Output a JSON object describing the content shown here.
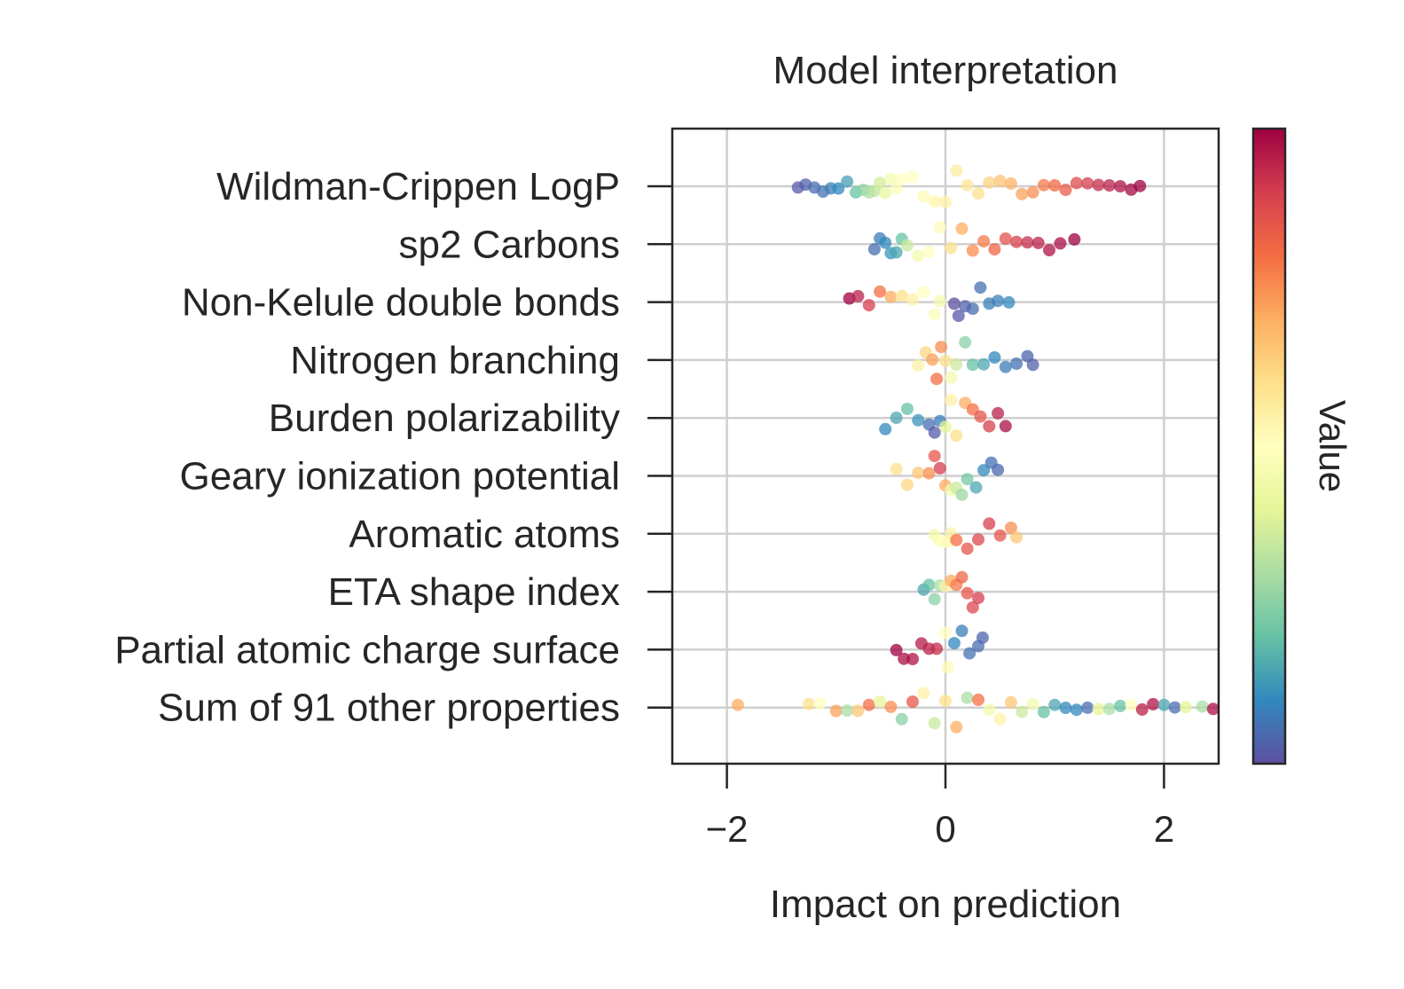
{
  "chart_data": {
    "type": "scatter",
    "subtype": "beeswarm",
    "title": "Model interpretation",
    "xlabel": "Impact on prediction",
    "ylabel": "",
    "xlim": [
      -2.5,
      2.5
    ],
    "xticks": [
      -2,
      0,
      2
    ],
    "xtick_labels": [
      "−2",
      "0",
      "2"
    ],
    "grid": true,
    "colorbar": {
      "label": "Value",
      "colormap": "Spectral",
      "range": [
        0,
        1
      ],
      "stops": [
        "#5e4fa2",
        "#3288bd",
        "#66c2a5",
        "#abdda4",
        "#e6f598",
        "#ffffbf",
        "#fee08b",
        "#fdae61",
        "#f46d43",
        "#d53e4f",
        "#9e0142"
      ]
    },
    "features": [
      {
        "name": "Wildman-Crippen LogP",
        "points": [
          [
            -1.35,
            0.02
          ],
          [
            -1.28,
            0.03
          ],
          [
            -1.2,
            0.05
          ],
          [
            -1.12,
            0.06
          ],
          [
            -1.05,
            0.08
          ],
          [
            -0.98,
            0.1
          ],
          [
            -0.9,
            0.14
          ],
          [
            -0.82,
            0.2
          ],
          [
            -0.75,
            0.26
          ],
          [
            -0.7,
            0.3
          ],
          [
            -0.65,
            0.33
          ],
          [
            -0.6,
            0.37
          ],
          [
            -0.55,
            0.42
          ],
          [
            -0.5,
            0.46
          ],
          [
            -0.45,
            0.48
          ],
          [
            -0.4,
            0.5
          ],
          [
            -0.3,
            0.5
          ],
          [
            -0.2,
            0.52
          ],
          [
            -0.1,
            0.53
          ],
          [
            0.0,
            0.55
          ],
          [
            0.1,
            0.56
          ],
          [
            0.2,
            0.58
          ],
          [
            0.3,
            0.6
          ],
          [
            0.4,
            0.63
          ],
          [
            0.5,
            0.66
          ],
          [
            0.6,
            0.69
          ],
          [
            0.7,
            0.72
          ],
          [
            0.8,
            0.75
          ],
          [
            0.9,
            0.78
          ],
          [
            1.0,
            0.81
          ],
          [
            1.1,
            0.84
          ],
          [
            1.2,
            0.87
          ],
          [
            1.3,
            0.9
          ],
          [
            1.4,
            0.93
          ],
          [
            1.5,
            0.95
          ],
          [
            1.6,
            0.97
          ],
          [
            1.7,
            0.99
          ],
          [
            1.78,
            1.0
          ]
        ]
      },
      {
        "name": "sp2 Carbons",
        "points": [
          [
            -0.65,
            0.05
          ],
          [
            -0.6,
            0.08
          ],
          [
            -0.55,
            0.1
          ],
          [
            -0.5,
            0.12
          ],
          [
            -0.45,
            0.15
          ],
          [
            -0.4,
            0.2
          ],
          [
            -0.35,
            0.35
          ],
          [
            -0.25,
            0.45
          ],
          [
            -0.15,
            0.5
          ],
          [
            -0.05,
            0.52
          ],
          [
            0.05,
            0.6
          ],
          [
            0.15,
            0.7
          ],
          [
            0.25,
            0.75
          ],
          [
            0.35,
            0.78
          ],
          [
            0.45,
            0.82
          ],
          [
            0.55,
            0.86
          ],
          [
            0.65,
            0.9
          ],
          [
            0.75,
            0.93
          ],
          [
            0.85,
            0.95
          ],
          [
            0.95,
            0.97
          ],
          [
            1.05,
            0.98
          ],
          [
            1.18,
            1.0
          ]
        ]
      },
      {
        "name": "Non-Kelule double bonds",
        "points": [
          [
            -0.88,
            1.0
          ],
          [
            -0.8,
            0.95
          ],
          [
            -0.7,
            0.9
          ],
          [
            -0.6,
            0.8
          ],
          [
            -0.5,
            0.7
          ],
          [
            -0.4,
            0.6
          ],
          [
            -0.3,
            0.55
          ],
          [
            -0.2,
            0.5
          ],
          [
            -0.1,
            0.48
          ],
          [
            -0.05,
            0.45
          ],
          [
            0.08,
            0.0
          ],
          [
            0.12,
            0.02
          ],
          [
            0.18,
            0.03
          ],
          [
            0.25,
            0.05
          ],
          [
            0.32,
            0.06
          ],
          [
            0.4,
            0.08
          ],
          [
            0.48,
            0.08
          ],
          [
            0.58,
            0.1
          ]
        ]
      },
      {
        "name": "Nitrogen branching",
        "points": [
          [
            -0.25,
            0.55
          ],
          [
            -0.18,
            0.62
          ],
          [
            -0.12,
            0.72
          ],
          [
            -0.08,
            0.8
          ],
          [
            -0.04,
            0.75
          ],
          [
            0.0,
            0.6
          ],
          [
            0.05,
            0.45
          ],
          [
            0.1,
            0.35
          ],
          [
            0.18,
            0.25
          ],
          [
            0.25,
            0.2
          ],
          [
            0.35,
            0.15
          ],
          [
            0.45,
            0.1
          ],
          [
            0.55,
            0.08
          ],
          [
            0.65,
            0.06
          ],
          [
            0.75,
            0.04
          ],
          [
            0.8,
            0.03
          ]
        ]
      },
      {
        "name": "Burden polarizability",
        "points": [
          [
            -0.55,
            0.1
          ],
          [
            -0.45,
            0.15
          ],
          [
            -0.35,
            0.2
          ],
          [
            -0.25,
            0.12
          ],
          [
            -0.15,
            0.05
          ],
          [
            -0.1,
            0.02
          ],
          [
            -0.05,
            0.08
          ],
          [
            0.0,
            0.4
          ],
          [
            0.05,
            0.55
          ],
          [
            0.1,
            0.6
          ],
          [
            0.18,
            0.7
          ],
          [
            0.25,
            0.8
          ],
          [
            0.32,
            0.85
          ],
          [
            0.4,
            0.9
          ],
          [
            0.48,
            0.95
          ],
          [
            0.55,
            0.98
          ]
        ]
      },
      {
        "name": "Geary ionization potential",
        "points": [
          [
            -0.45,
            0.6
          ],
          [
            -0.35,
            0.62
          ],
          [
            -0.25,
            0.65
          ],
          [
            -0.15,
            0.75
          ],
          [
            -0.1,
            0.85
          ],
          [
            -0.05,
            0.9
          ],
          [
            0.0,
            0.7
          ],
          [
            0.05,
            0.45
          ],
          [
            0.1,
            0.35
          ],
          [
            0.15,
            0.28
          ],
          [
            0.2,
            0.22
          ],
          [
            0.28,
            0.15
          ],
          [
            0.35,
            0.1
          ],
          [
            0.42,
            0.06
          ],
          [
            0.48,
            0.04
          ]
        ]
      },
      {
        "name": "Aromatic atoms",
        "points": [
          [
            -0.1,
            0.45
          ],
          [
            -0.06,
            0.48
          ],
          [
            -0.02,
            0.5
          ],
          [
            0.02,
            0.52
          ],
          [
            0.05,
            0.55
          ],
          [
            0.1,
            0.8
          ],
          [
            0.2,
            0.85
          ],
          [
            0.3,
            0.88
          ],
          [
            0.4,
            0.9
          ],
          [
            0.5,
            0.85
          ],
          [
            0.6,
            0.75
          ],
          [
            0.65,
            0.65
          ]
        ]
      },
      {
        "name": "ETA shape index",
        "points": [
          [
            -0.2,
            0.15
          ],
          [
            -0.15,
            0.2
          ],
          [
            -0.1,
            0.25
          ],
          [
            -0.05,
            0.3
          ],
          [
            0.0,
            0.55
          ],
          [
            0.05,
            0.7
          ],
          [
            0.1,
            0.78
          ],
          [
            0.15,
            0.82
          ],
          [
            0.2,
            0.85
          ],
          [
            0.25,
            0.88
          ],
          [
            0.3,
            0.9
          ]
        ]
      },
      {
        "name": "Partial atomic charge surface",
        "points": [
          [
            -0.45,
            1.0
          ],
          [
            -0.38,
            0.98
          ],
          [
            -0.3,
            0.97
          ],
          [
            -0.22,
            0.96
          ],
          [
            -0.15,
            0.95
          ],
          [
            -0.08,
            0.93
          ],
          [
            0.0,
            0.5
          ],
          [
            0.02,
            0.52
          ],
          [
            0.08,
            0.1
          ],
          [
            0.15,
            0.08
          ],
          [
            0.22,
            0.06
          ],
          [
            0.3,
            0.05
          ],
          [
            0.34,
            0.04
          ]
        ]
      },
      {
        "name": "Sum of 91 other properties",
        "points": [
          [
            -1.9,
            0.7
          ],
          [
            -1.25,
            0.6
          ],
          [
            -1.15,
            0.5
          ],
          [
            -1.0,
            0.72
          ],
          [
            -0.9,
            0.3
          ],
          [
            -0.8,
            0.65
          ],
          [
            -0.7,
            0.8
          ],
          [
            -0.6,
            0.4
          ],
          [
            -0.5,
            0.75
          ],
          [
            -0.4,
            0.25
          ],
          [
            -0.3,
            0.85
          ],
          [
            -0.2,
            0.55
          ],
          [
            -0.1,
            0.35
          ],
          [
            0.0,
            0.6
          ],
          [
            0.1,
            0.7
          ],
          [
            0.2,
            0.3
          ],
          [
            0.3,
            0.8
          ],
          [
            0.4,
            0.45
          ],
          [
            0.5,
            0.55
          ],
          [
            0.6,
            0.65
          ],
          [
            0.7,
            0.35
          ],
          [
            0.8,
            0.45
          ],
          [
            0.9,
            0.2
          ],
          [
            1.0,
            0.15
          ],
          [
            1.1,
            0.1
          ],
          [
            1.2,
            0.1
          ],
          [
            1.3,
            0.05
          ],
          [
            1.4,
            0.4
          ],
          [
            1.5,
            0.3
          ],
          [
            1.6,
            0.2
          ],
          [
            1.7,
            0.5
          ],
          [
            1.8,
            0.95
          ],
          [
            1.9,
            0.97
          ],
          [
            2.0,
            0.15
          ],
          [
            2.1,
            0.05
          ],
          [
            2.2,
            0.4
          ],
          [
            2.35,
            0.3
          ],
          [
            2.45,
            0.98
          ]
        ]
      }
    ]
  }
}
